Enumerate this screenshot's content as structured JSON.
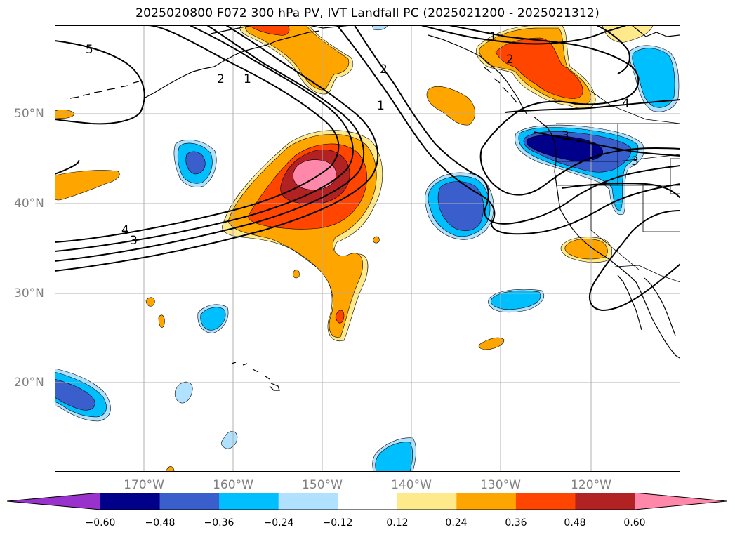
{
  "title": "2025020800 F072 300 hPa PV, IVT Landfall PC (2025021200 - 2025021312)",
  "lat_labels": [
    "50°N",
    "40°N",
    "30°N",
    "20°N"
  ],
  "lon_labels": [
    "170°W",
    "160°W",
    "150°W",
    "140°W",
    "130°W",
    "120°W"
  ],
  "contour_labels": [
    "5",
    "2",
    "1",
    "2",
    "1",
    "1",
    "2",
    "4",
    "3",
    "4",
    "3",
    "3"
  ],
  "colorbar": {
    "ticks": [
      "−0.60",
      "−0.48",
      "−0.36",
      "−0.24",
      "−0.12",
      "0.12",
      "0.24",
      "0.36",
      "0.48",
      "0.60"
    ],
    "bins": [
      "#9932cc",
      "#00008b",
      "#3a5fcd",
      "#00bfff",
      "#b0e2ff",
      "#ffffff",
      "#fee98b",
      "#ffa500",
      "#ff4500",
      "#b22222",
      "#ff88aa"
    ]
  },
  "colors": {
    "neg_extreme": "#9932cc",
    "neg_060": "#00008b",
    "neg_048": "#3a5fcd",
    "neg_036": "#00bfff",
    "neg_024": "#b0e2ff",
    "pos_012": "#fee98b",
    "pos_024": "#ffa500",
    "pos_036": "#ff4500",
    "pos_048": "#b22222",
    "pos_060": "#ff88aa",
    "grid": "#b0b0b0",
    "axis_label": "#808080"
  }
}
